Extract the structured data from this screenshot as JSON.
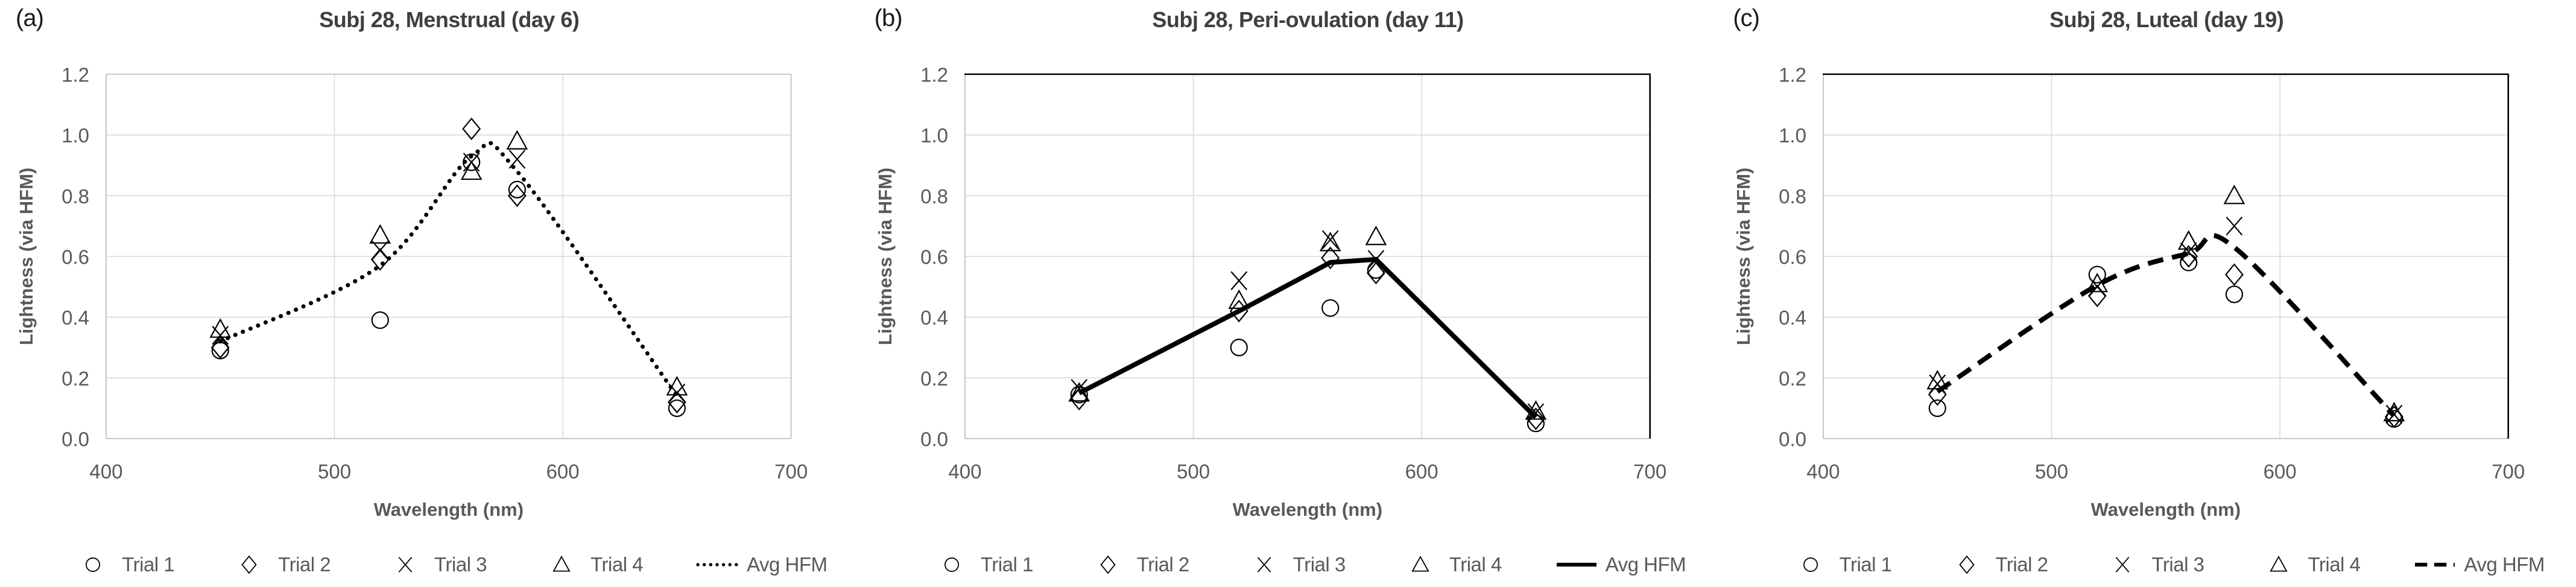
{
  "figure": {
    "description": "Three-panel scatter figure: Lightness (via HFM) versus wavelength for Subject 28 across menstrual cycle phases",
    "text_color": "#595959",
    "title_color": "#3f3f3f",
    "panel_label_color": "#1a1a1a",
    "grid_color": "#d9d9d9",
    "border_color": "#c3c3c3",
    "dark_border_color": "#000000",
    "marker_color": "#000000"
  },
  "chart_data": [
    {
      "type": "scatter",
      "panel_label": "(a)",
      "title": "Subj 28, Menstrual (day 6)",
      "xlabel": "Wavelength (nm)",
      "ylabel": "Lightness (via HFM)",
      "x": [
        450,
        520,
        560,
        580,
        650
      ],
      "xlim": [
        400,
        700
      ],
      "ylim": [
        0.0,
        1.2
      ],
      "xticks": [
        "400",
        "500",
        "600",
        "700"
      ],
      "yticks": [
        "0.0",
        "0.2",
        "0.4",
        "0.6",
        "0.8",
        "1.0",
        "1.2"
      ],
      "grid": true,
      "legend_position": "bottom",
      "smooth_avg_line": true,
      "dark_top_right_border": false,
      "series": [
        {
          "name": "Trial 1",
          "marker": "circle",
          "values": [
            0.29,
            0.39,
            0.91,
            0.82,
            0.1
          ]
        },
        {
          "name": "Trial 2",
          "marker": "diamond",
          "values": [
            0.3,
            0.59,
            1.02,
            0.8,
            0.12
          ]
        },
        {
          "name": "Trial 3",
          "marker": "x",
          "values": [
            0.34,
            0.62,
            0.91,
            0.92,
            0.15
          ]
        },
        {
          "name": "Trial 4",
          "marker": "triangle",
          "values": [
            0.36,
            0.67,
            0.88,
            0.98,
            0.17
          ]
        },
        {
          "name": "Avg HFM",
          "line": true,
          "line_style": "dotted",
          "values": [
            0.32,
            0.57,
            0.93,
            0.88,
            0.14
          ]
        }
      ]
    },
    {
      "type": "scatter",
      "panel_label": "(b)",
      "title": "Subj 28, Peri-ovulation (day 11)",
      "xlabel": "Wavelength (nm)",
      "ylabel": "Lightness (via HFM)",
      "x": [
        450,
        520,
        560,
        580,
        650
      ],
      "xlim": [
        400,
        700
      ],
      "ylim": [
        0.0,
        1.2
      ],
      "xticks": [
        "400",
        "500",
        "600",
        "700"
      ],
      "yticks": [
        "0.0",
        "0.2",
        "0.4",
        "0.6",
        "0.8",
        "1.0",
        "1.2"
      ],
      "grid": true,
      "legend_position": "bottom",
      "smooth_avg_line": false,
      "dark_top_right_border": true,
      "series": [
        {
          "name": "Trial 1",
          "marker": "circle",
          "values": [
            0.145,
            0.3,
            0.43,
            0.555,
            0.05
          ]
        },
        {
          "name": "Trial 2",
          "marker": "diamond",
          "values": [
            0.13,
            0.42,
            0.595,
            0.545,
            0.065
          ]
        },
        {
          "name": "Trial 3",
          "marker": "x",
          "values": [
            0.165,
            0.52,
            0.655,
            0.59,
            0.085
          ]
        },
        {
          "name": "Trial 4",
          "marker": "triangle",
          "values": [
            0.15,
            0.455,
            0.645,
            0.665,
            0.09
          ]
        },
        {
          "name": "Avg HFM",
          "line": true,
          "line_style": "solid",
          "values": [
            0.15,
            0.42,
            0.58,
            0.59,
            0.07
          ]
        }
      ]
    },
    {
      "type": "scatter",
      "panel_label": "(c)",
      "title": "Subj 28, Luteal (day 19)",
      "xlabel": "Wavelength (nm)",
      "ylabel": "Lightness (via HFM)",
      "x": [
        450,
        520,
        560,
        580,
        650
      ],
      "xlim": [
        400,
        700
      ],
      "ylim": [
        0.0,
        1.2
      ],
      "xticks": [
        "400",
        "500",
        "600",
        "700"
      ],
      "yticks": [
        "0.0",
        "0.2",
        "0.4",
        "0.6",
        "0.8",
        "1.0",
        "1.2"
      ],
      "grid": true,
      "legend_position": "bottom",
      "smooth_avg_line": true,
      "dark_top_right_border": true,
      "series": [
        {
          "name": "Trial 1",
          "marker": "circle",
          "values": [
            0.1,
            0.54,
            0.58,
            0.475,
            0.065
          ]
        },
        {
          "name": "Trial 2",
          "marker": "diamond",
          "values": [
            0.145,
            0.47,
            0.6,
            0.54,
            0.072
          ]
        },
        {
          "name": "Trial 3",
          "marker": "x",
          "values": [
            0.18,
            0.5,
            0.615,
            0.7,
            0.08
          ]
        },
        {
          "name": "Trial 4",
          "marker": "triangle",
          "values": [
            0.19,
            0.51,
            0.65,
            0.8,
            0.085
          ]
        },
        {
          "name": "Avg HFM",
          "line": true,
          "line_style": "dashed",
          "values": [
            0.155,
            0.505,
            0.61,
            0.63,
            0.075
          ]
        }
      ]
    }
  ]
}
